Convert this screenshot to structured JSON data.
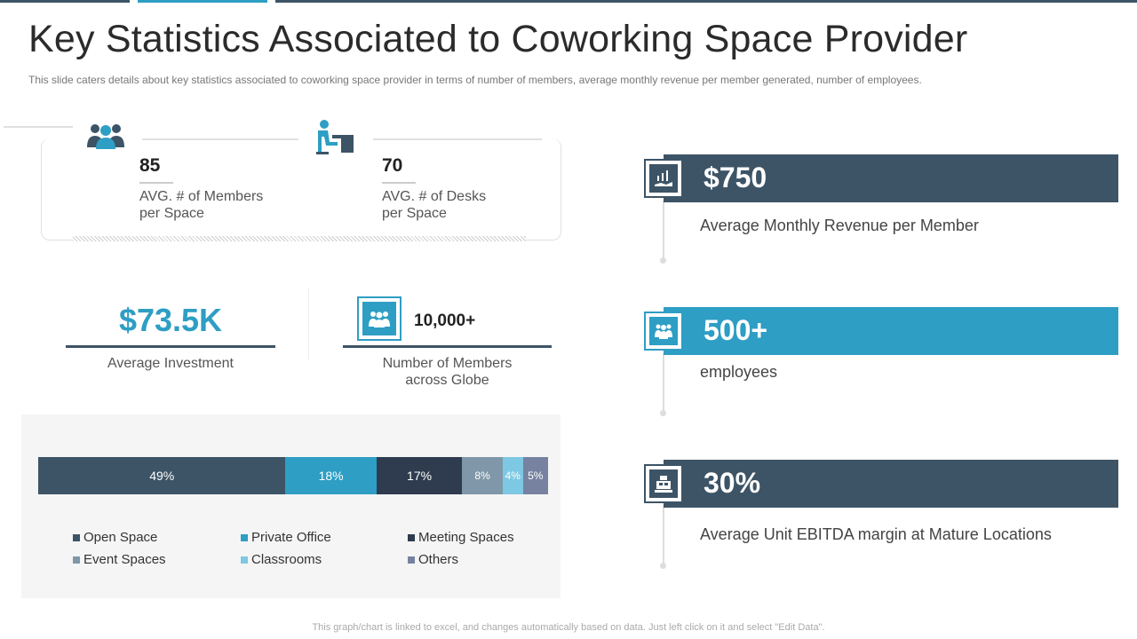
{
  "header": {
    "title": "Key Statistics Associated to Coworking Space Provider",
    "subtitle": "This slide caters details about key statistics associated to coworking space provider  in terms of number of members, average  monthly revenue  per member generated,  number of employees."
  },
  "colors": {
    "dark": "#3d5466",
    "accent": "#2e9ec4",
    "navy": "#2f3c4f",
    "gray": "#7f97a8",
    "light": "#7dc8e3",
    "slate": "#7682a0"
  },
  "stats": {
    "members_per_space": {
      "value": "85",
      "label_line1": "AVG. # of Members",
      "label_line2": "per Space",
      "icon": "people-group-icon"
    },
    "desks_per_space": {
      "value": "70",
      "label_line1": "AVG. # of Desks",
      "label_line2": "per Space",
      "icon": "person-at-desk-icon"
    },
    "investment": {
      "value": "$73.5K",
      "label": "Average Investment"
    },
    "members_globe": {
      "value": "10,000+",
      "label_line1": "Number of Members",
      "label_line2": "across Globe",
      "icon": "people-group-icon"
    }
  },
  "chart_data": {
    "type": "bar",
    "orientation": "horizontal-stacked-100",
    "title": "",
    "categories": [
      "Open Space",
      "Private Office",
      "Meeting Spaces",
      "Event Spaces",
      "Classrooms",
      "Others"
    ],
    "values": [
      49,
      18,
      17,
      8,
      4,
      5
    ],
    "labels": [
      "49%",
      "18%",
      "17%",
      "8%",
      "4%",
      "5%"
    ],
    "series_colors": [
      "#3d5466",
      "#2e9ec4",
      "#2f3c4f",
      "#7f97a8",
      "#7dc8e3",
      "#7682a0"
    ],
    "legend_position": "bottom",
    "xlim": [
      0,
      100
    ]
  },
  "right_panel": [
    {
      "value": "$750",
      "label": "Average Monthly Revenue per Member",
      "icon": "revenue-hand-icon",
      "color": "#3d5466"
    },
    {
      "value": "500+",
      "label": "employees",
      "icon": "team-icon",
      "color": "#2e9ec4"
    },
    {
      "value": "30%",
      "label": "Average Unit EBITDA margin at Mature Locations",
      "icon": "cash-register-icon",
      "color": "#3d5466"
    }
  ],
  "footer": {
    "note": "This graph/chart is linked to excel,  and changes automatically based on data. Just left click on it and select \"Edit Data\"."
  }
}
